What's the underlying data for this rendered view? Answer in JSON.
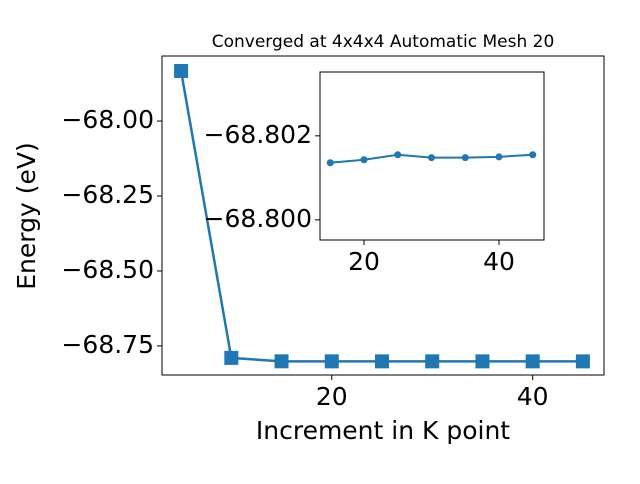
{
  "chart_data": [
    {
      "type": "line",
      "title": "Converged at 4x4x4 Automatic Mesh 20",
      "xlabel": "Increment in K point",
      "ylabel": "Energy (eV)",
      "x": [
        5,
        10,
        15,
        20,
        25,
        30,
        35,
        40,
        45
      ],
      "values": [
        -67.833,
        -68.79,
        -68.80136,
        -68.80143,
        -68.80155,
        -68.80148,
        -68.80148,
        -68.8015,
        -68.80155
      ],
      "color": "#1f77b4",
      "marker": "square",
      "xlim": [
        3.1,
        47.1
      ],
      "xticks": [
        20,
        40
      ],
      "ylim": [
        -68.847,
        -67.783
      ],
      "yticks": [
        {
          "value": -68.0,
          "label": "−68.00"
        },
        {
          "value": -68.25,
          "label": "−68.25"
        },
        {
          "value": -68.5,
          "label": "−68.50"
        },
        {
          "value": -68.75,
          "label": "−68.75"
        }
      ]
    },
    {
      "type": "line",
      "x": [
        15,
        20,
        25,
        30,
        35,
        40,
        45
      ],
      "values": [
        -68.80136,
        -68.80143,
        -68.80155,
        -68.80148,
        -68.80148,
        -68.8015,
        -68.80155
      ],
      "color": "#1f77b4",
      "marker": "circle",
      "xlim": [
        13.48,
        46.67
      ],
      "xticks": [
        20,
        40
      ],
      "ylim": [
        -68.79952,
        -68.80352
      ],
      "yticks": [
        {
          "value": -68.802,
          "label": "−68.802"
        },
        {
          "value": -68.8,
          "label": "−68.800"
        }
      ]
    }
  ]
}
